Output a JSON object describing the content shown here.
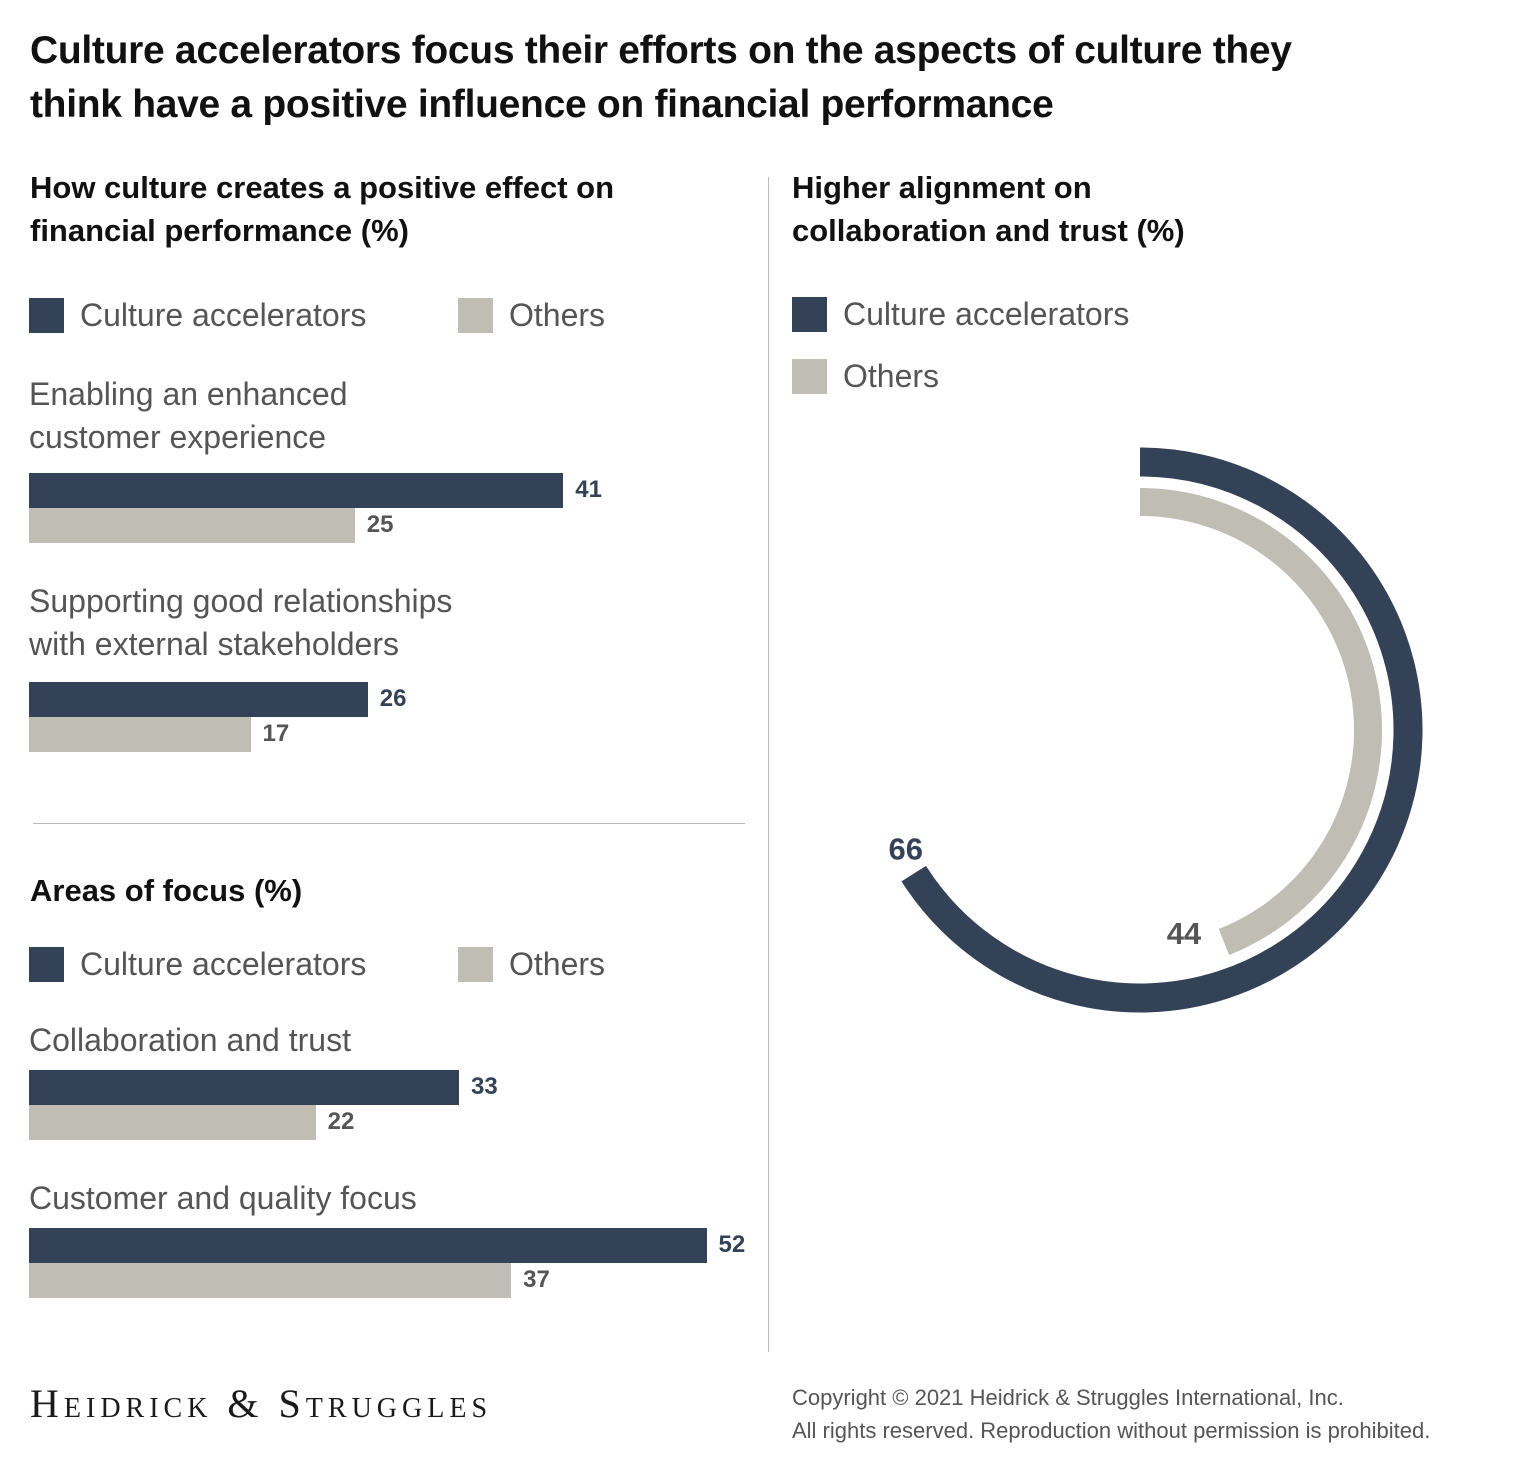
{
  "title": "Culture accelerators focus their efforts on the aspects of culture they think have a positive influence on financial performance",
  "colors": {
    "culture_accelerators": "#334256",
    "others": "#bfbdb4",
    "value_dark": "#334256",
    "value_gray": "#555555"
  },
  "chart_data": [
    {
      "type": "bar",
      "orientation": "horizontal",
      "title": "How culture creates a positive effect on financial performance (%)",
      "legend": [
        "Culture accelerators",
        "Others"
      ],
      "legend_placement": "top",
      "categories": [
        "Enabling an enhanced customer experience",
        "Supporting good relationships with external stakeholders"
      ],
      "series": [
        {
          "name": "Culture accelerators",
          "values": [
            41,
            26
          ]
        },
        {
          "name": "Others",
          "values": [
            25,
            17
          ]
        }
      ],
      "grid": false
    },
    {
      "type": "bar",
      "orientation": "horizontal",
      "title": "Areas of focus (%)",
      "legend": [
        "Culture accelerators",
        "Others"
      ],
      "legend_placement": "top",
      "categories": [
        "Collaboration and trust",
        "Customer and quality focus"
      ],
      "series": [
        {
          "name": "Culture accelerators",
          "values": [
            33,
            52
          ]
        },
        {
          "name": "Others",
          "values": [
            22,
            37
          ]
        }
      ],
      "grid": false
    },
    {
      "type": "radial-bar",
      "title": "Higher alignment on collaboration and trust (%)",
      "legend": [
        "Culture accelerators",
        "Others"
      ],
      "legend_placement": "top-left",
      "series": [
        {
          "name": "Culture accelerators",
          "values": [
            66
          ]
        },
        {
          "name": "Others",
          "values": [
            44
          ]
        }
      ],
      "max": 100
    }
  ],
  "footer": {
    "logo": "Heidrick & Struggles",
    "copyright_line1": "Copyright © 2021 Heidrick & Struggles International, Inc.",
    "copyright_line2": "All rights reserved. Reproduction without permission is prohibited."
  }
}
